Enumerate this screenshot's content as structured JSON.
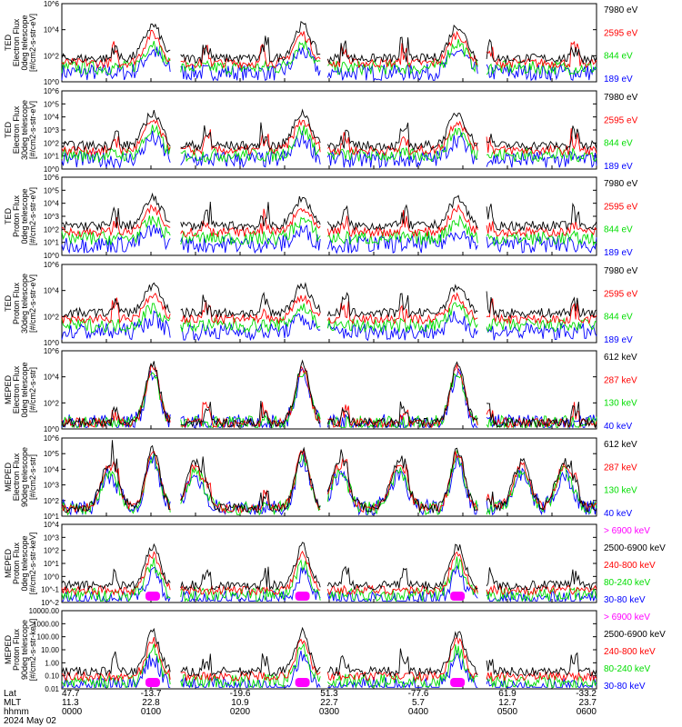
{
  "colors": {
    "magenta": "#ff00ff",
    "black": "#000000",
    "red": "#ff0000",
    "green": "#00dd00",
    "blue": "#0000ff"
  },
  "footer": {
    "row_labels": [
      "Lat",
      "MLT",
      "hhmm",
      "2024 May 02"
    ],
    "lat": [
      "47.7",
      "-13.7",
      "-19.6",
      "51.3",
      "-77.6",
      "61.9",
      "-33.2"
    ],
    "mlt": [
      "11.3",
      "22.8",
      "10.9",
      "22.7",
      "5.7",
      "12.7",
      "23.7"
    ],
    "hhmm": [
      "0000",
      "0100",
      "0200",
      "0300",
      "0400",
      "0500",
      "0600"
    ]
  },
  "chart_data": [
    {
      "type": "line",
      "ylabel": "TED\nElectron Flux\n0deg telescope\n[#/cm2-s-str-eV]",
      "yticks": [
        "10^0",
        "10^2",
        "10^4",
        "10^6"
      ],
      "ylog_range": [
        0,
        6
      ],
      "legend": [
        {
          "name": "7980 eV",
          "color": "black"
        },
        {
          "name": "2595 eV",
          "color": "red"
        },
        {
          "name": "844 eV",
          "color": "green"
        },
        {
          "name": "189 eV",
          "color": "blue"
        }
      ]
    },
    {
      "type": "line",
      "ylabel": "TED\nElectron Flux\n30deg telescope\n[#/cm2-s-str-eV]",
      "yticks": [
        "10^0",
        "10^1",
        "10^2",
        "10^3",
        "10^4",
        "10^5",
        "10^6"
      ],
      "ylog_range": [
        0,
        6
      ],
      "legend": [
        {
          "name": "7980 eV",
          "color": "black"
        },
        {
          "name": "2595 eV",
          "color": "red"
        },
        {
          "name": "844 eV",
          "color": "green"
        },
        {
          "name": "189 eV",
          "color": "blue"
        }
      ]
    },
    {
      "type": "line",
      "ylabel": "TED\nProton Flux\n0deg telescope\n[#/cm2-s-str-eV]",
      "yticks": [
        "10^0",
        "10^1",
        "10^2",
        "10^3",
        "10^4",
        "10^5",
        "10^6"
      ],
      "ylog_range": [
        0,
        6
      ],
      "legend": [
        {
          "name": "7980 eV",
          "color": "black"
        },
        {
          "name": "2595 eV",
          "color": "red"
        },
        {
          "name": "844 eV",
          "color": "green"
        },
        {
          "name": "189 eV",
          "color": "blue"
        }
      ]
    },
    {
      "type": "line",
      "ylabel": "TED\nProton Flux\n30deg telescope\n[#/cm2-s-str-eV]",
      "yticks": [
        "10^0",
        "10^2",
        "10^4",
        "10^6"
      ],
      "ylog_range": [
        0,
        6
      ],
      "legend": [
        {
          "name": "7980 eV",
          "color": "black"
        },
        {
          "name": "2595 eV",
          "color": "red"
        },
        {
          "name": "844 eV",
          "color": "green"
        },
        {
          "name": "189 eV",
          "color": "blue"
        }
      ]
    },
    {
      "type": "line",
      "ylabel": "MEPED\nElectron Flux\n0deg telescope\n[#/cm2-s-str]",
      "yticks": [
        "10^0",
        "10^2",
        "10^4",
        "10^6"
      ],
      "ylog_range": [
        0,
        6
      ],
      "legend": [
        {
          "name": "612 keV",
          "color": "black"
        },
        {
          "name": "287 keV",
          "color": "red"
        },
        {
          "name": "130 keV",
          "color": "green"
        },
        {
          "name": "40 keV",
          "color": "blue"
        }
      ]
    },
    {
      "type": "line",
      "ylabel": "MEPED\nElectron Flux\n90deg telescope\n[#/cm2-s-str]",
      "yticks": [
        "10^1",
        "10^2",
        "10^3",
        "10^4",
        "10^5",
        "10^6"
      ],
      "ylog_range": [
        1,
        6
      ],
      "legend": [
        {
          "name": "612 keV",
          "color": "black"
        },
        {
          "name": "287 keV",
          "color": "red"
        },
        {
          "name": "130 keV",
          "color": "green"
        },
        {
          "name": "40 keV",
          "color": "blue"
        }
      ]
    },
    {
      "type": "line",
      "ylabel": "MEPED\nProton Flux\n0deg telescope\n[#/cm2-s-str-keV]",
      "yticks": [
        "10^-2",
        "10^-1",
        "10^0",
        "10^1",
        "10^2",
        "10^3",
        "10^4"
      ],
      "ylog_range": [
        -2,
        4
      ],
      "legend": [
        {
          "name": "> 6900 keV",
          "color": "magenta"
        },
        {
          "name": "2500-6900 keV",
          "color": "black"
        },
        {
          "name": "240-800 keV",
          "color": "red"
        },
        {
          "name": "80-240 keV",
          "color": "green"
        },
        {
          "name": "30-80 keV",
          "color": "blue"
        }
      ]
    },
    {
      "type": "line",
      "ylabel": "MEPED\nProton Flux\n90deg telescope\n[#/cm2-s-str-keV]",
      "yticks": [
        "0.01",
        "0.10",
        "1.00",
        "10.00",
        "100.00",
        "1000.00",
        "10000.00"
      ],
      "ylog_range": [
        -2,
        4
      ],
      "legend": [
        {
          "name": "> 6900 keV",
          "color": "magenta"
        },
        {
          "name": "2500-6900 keV",
          "color": "black"
        },
        {
          "name": "240-800 keV",
          "color": "red"
        },
        {
          "name": "80-240 keV",
          "color": "green"
        },
        {
          "name": "30-80 keV",
          "color": "blue"
        }
      ]
    }
  ]
}
